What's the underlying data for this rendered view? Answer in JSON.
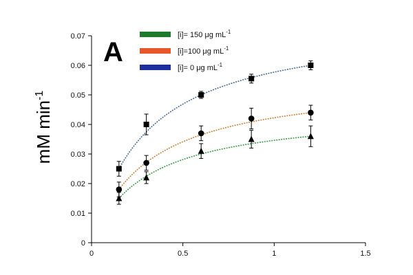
{
  "panel_label": "A",
  "chart_data": {
    "type": "scatter",
    "title": "",
    "xlabel": "",
    "ylabel": "mM min",
    "ylabel_superscript": "-1",
    "xlim": [
      0,
      1.5
    ],
    "ylim": [
      0,
      0.07
    ],
    "xticks": [
      "0",
      "0.5",
      "1",
      "1.5"
    ],
    "yticks": [
      "0",
      "0.01",
      "0.02",
      "0.03",
      "0.04",
      "0.05",
      "0.06",
      "0.07"
    ],
    "grid": false,
    "legend_position": "top-center",
    "legend": [
      {
        "label": "[i]= 150 μg mL",
        "sup": "-1",
        "color": "#1f7a2e"
      },
      {
        "label": "[i]=100 μg mL",
        "sup": "-1",
        "color": "#e8572a"
      },
      {
        "label": "[i]= 0 μg mL",
        "sup": "-1",
        "color": "#1c2f9c"
      }
    ],
    "x": [
      0.15,
      0.3,
      0.6,
      0.875,
      1.2
    ],
    "series": [
      {
        "marker": "square",
        "fit_color": "#4a6a92",
        "values": [
          0.025,
          0.04,
          0.05,
          0.0555,
          0.06
        ],
        "errors": [
          0.0025,
          0.0035,
          0.0012,
          0.0015,
          0.0015
        ]
      },
      {
        "marker": "circle",
        "fit_color": "#c9823f",
        "values": [
          0.018,
          0.027,
          0.037,
          0.042,
          0.044
        ],
        "errors": [
          0.0025,
          0.0025,
          0.0025,
          0.0035,
          0.0025
        ]
      },
      {
        "marker": "triangle",
        "fit_color": "#3f9b4a",
        "values": [
          0.015,
          0.022,
          0.031,
          0.035,
          0.036
        ],
        "errors": [
          0.002,
          0.002,
          0.0025,
          0.003,
          0.0035
        ]
      }
    ]
  }
}
